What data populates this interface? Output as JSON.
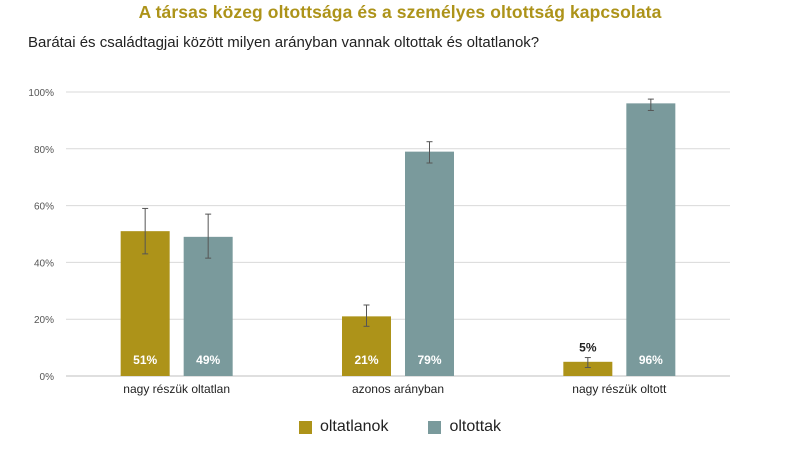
{
  "chart_data": {
    "type": "bar",
    "title": "A társas közeg oltottsága és a személyes oltottság kapcsolata",
    "subtitle": "Barátai és családtagjai között milyen arányban vannak oltottak és oltatlanok?",
    "categories": [
      "nagy részük oltatlan",
      "azonos arányban",
      "nagy részük oltott"
    ],
    "series": [
      {
        "name": "oltatlanok",
        "color": "#ad9319",
        "values": [
          51,
          21,
          5
        ],
        "value_labels": [
          "51%",
          "21%",
          "5%"
        ],
        "error": [
          [
            43,
            59
          ],
          [
            17.5,
            25
          ],
          [
            3,
            6.5
          ]
        ]
      },
      {
        "name": "oltottak",
        "color": "#7a9a9c",
        "values": [
          49,
          79,
          96
        ],
        "value_labels": [
          "49%",
          "79%",
          "96%"
        ],
        "error": [
          [
            41.5,
            57
          ],
          [
            75,
            82.5
          ],
          [
            93.5,
            97.5
          ]
        ]
      }
    ],
    "yticks": [
      "0%",
      "20%",
      "40%",
      "60%",
      "80%",
      "100%"
    ],
    "ylim": [
      0,
      100
    ],
    "grid": true,
    "legend_position": "bottom"
  }
}
